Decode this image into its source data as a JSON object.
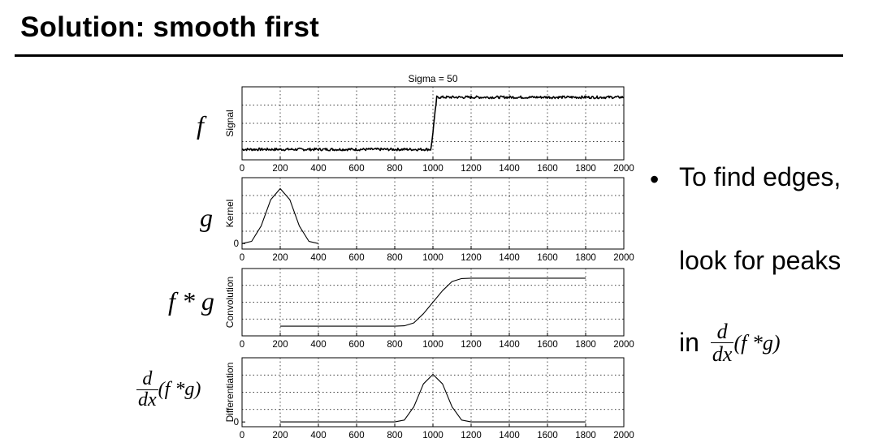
{
  "slide": {
    "title": "Solution: smooth first"
  },
  "row_labels": {
    "f": "f",
    "g": "g",
    "fg": "f * g",
    "deriv_num": "d",
    "deriv_den": "dx",
    "deriv_expr": "(f *g)"
  },
  "bullet": {
    "marker": "•",
    "line1": "To find edges,",
    "line2": "look for peaks",
    "line3_prefix": "in",
    "frac_num": "d",
    "frac_den": "dx",
    "frac_expr": "(f *g)"
  },
  "chart_data": [
    {
      "type": "line",
      "title": "Sigma = 50",
      "ylabel": "Signal",
      "x_ticks": [
        "0",
        "200",
        "400",
        "600",
        "800",
        "1000",
        "1200",
        "1400",
        "1600",
        "1800",
        "2000"
      ],
      "xlim": [
        0,
        2000
      ],
      "ylim": [
        -0.2,
        1.2
      ],
      "grid": true,
      "noisy": true,
      "x": [
        0,
        990,
        1020,
        2000
      ],
      "y": [
        0,
        0,
        1,
        1
      ]
    },
    {
      "type": "line",
      "title": "",
      "ylabel": "Kernel",
      "x_ticks": [
        "0",
        "200",
        "400",
        "600",
        "800",
        "1000",
        "1200",
        "1400",
        "1600",
        "1800",
        "2000"
      ],
      "y_ticks": [
        "0"
      ],
      "xlim": [
        0,
        2000
      ],
      "ylim": [
        -0.1,
        1.2
      ],
      "grid": true,
      "x": [
        0,
        50,
        100,
        150,
        200,
        250,
        300,
        350,
        400
      ],
      "y": [
        0.0,
        0.04,
        0.32,
        0.8,
        1.0,
        0.8,
        0.32,
        0.04,
        0.0
      ]
    },
    {
      "type": "line",
      "title": "",
      "ylabel": "Convolution",
      "x_ticks": [
        "0",
        "200",
        "400",
        "600",
        "800",
        "1000",
        "1200",
        "1400",
        "1600",
        "1800",
        "2000"
      ],
      "xlim": [
        0,
        2000
      ],
      "ylim": [
        -0.2,
        1.2
      ],
      "grid": true,
      "x": [
        200,
        800,
        850,
        900,
        950,
        1000,
        1050,
        1100,
        1150,
        1200,
        1800
      ],
      "y": [
        0,
        0,
        0.01,
        0.07,
        0.26,
        0.5,
        0.74,
        0.93,
        0.99,
        1,
        1
      ]
    },
    {
      "type": "line",
      "title": "",
      "ylabel": "Differentiation",
      "x_ticks": [
        "0",
        "200",
        "400",
        "600",
        "800",
        "1000",
        "1200",
        "1400",
        "1600",
        "1800",
        "2000"
      ],
      "y_ticks": [
        "0"
      ],
      "xlim": [
        0,
        2000
      ],
      "ylim": [
        -0.1,
        1.35
      ],
      "grid": true,
      "x": [
        200,
        800,
        850,
        900,
        950,
        1000,
        1050,
        1100,
        1150,
        1200,
        1800
      ],
      "y": [
        0,
        0,
        0.04,
        0.32,
        0.8,
        1.0,
        0.8,
        0.32,
        0.04,
        0,
        0
      ]
    }
  ]
}
